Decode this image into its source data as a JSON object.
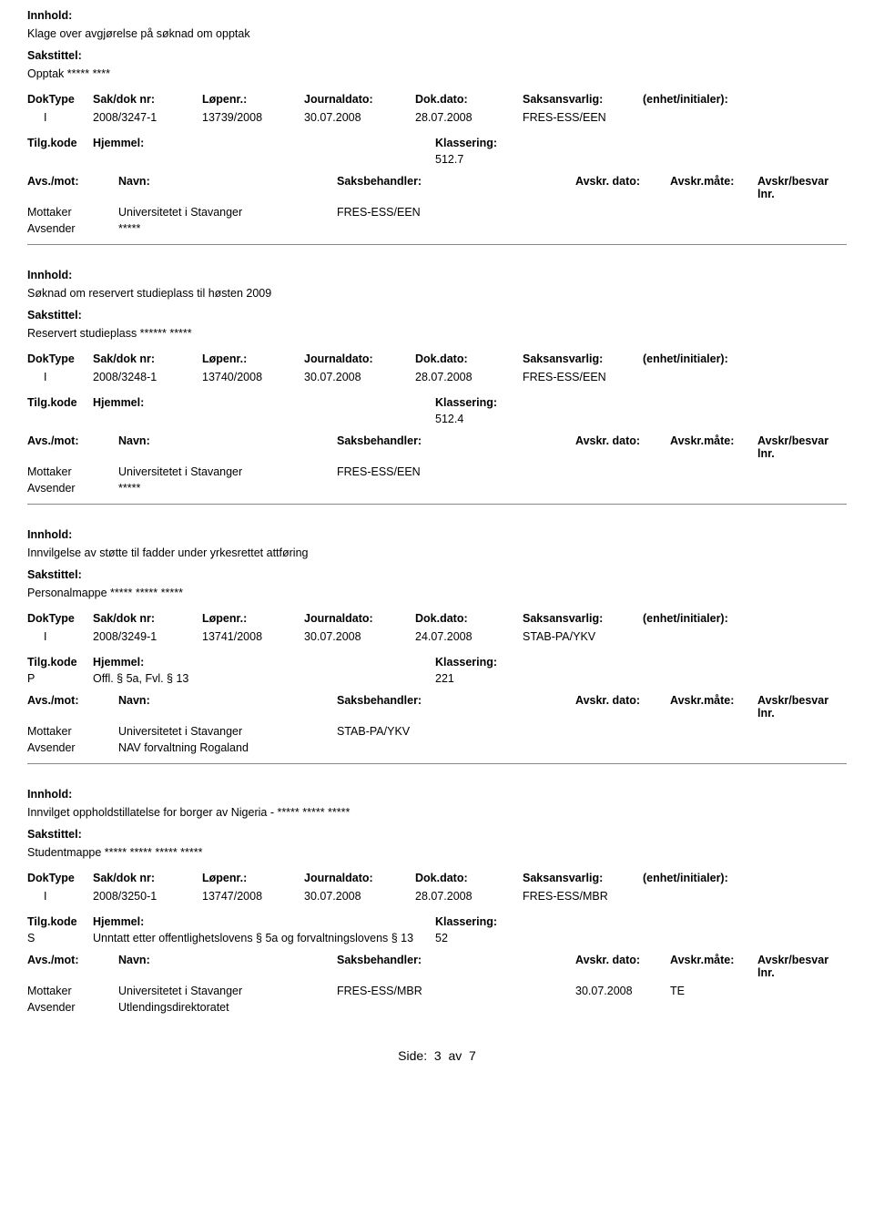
{
  "labels": {
    "innhold": "Innhold:",
    "sakstittel": "Sakstittel:",
    "doktype": "DokType",
    "saknr": "Sak/dok nr:",
    "lopenr": "Løpenr.:",
    "journaldato": "Journaldato:",
    "dokdato": "Dok.dato:",
    "saksansvarlig": "Saksansvarlig:",
    "enhet": "(enhet/initialer):",
    "tilgkode": "Tilg.kode",
    "hjemmel": "Hjemmel:",
    "klassering": "Klassering:",
    "avsmot": "Avs./mot:",
    "navn": "Navn:",
    "saksbehandler": "Saksbehandler:",
    "avskrdato": "Avskr. dato:",
    "avskrmate": "Avskr.måte:",
    "avskrlnr": "Avskr/besvar lnr.",
    "mottaker": "Mottaker",
    "avsender": "Avsender"
  },
  "entries": [
    {
      "innhold": "Klage over avgjørelse på søknad om opptak",
      "sakstittel": "Opptak ***** ****",
      "doktype": "I",
      "saknr": "2008/3247-1",
      "lopenr": "13739/2008",
      "journaldato": "30.07.2008",
      "dokdato": "28.07.2008",
      "saksansvarlig": "FRES-ESS/EEN",
      "tilgkode": "",
      "hjemmel": "",
      "klassering": "512.7",
      "mottaker_navn": "Universitetet i Stavanger",
      "mottaker_saksbeh": "FRES-ESS/EEN",
      "mottaker_avskrdato": "",
      "mottaker_avskrmate": "",
      "avsender_navn": "*****"
    },
    {
      "innhold": "Søknad om reservert studieplass til høsten 2009",
      "sakstittel": "Reservert studieplass ****** *****",
      "doktype": "I",
      "saknr": "2008/3248-1",
      "lopenr": "13740/2008",
      "journaldato": "30.07.2008",
      "dokdato": "28.07.2008",
      "saksansvarlig": "FRES-ESS/EEN",
      "tilgkode": "",
      "hjemmel": "",
      "klassering": "512.4",
      "mottaker_navn": "Universitetet i Stavanger",
      "mottaker_saksbeh": "FRES-ESS/EEN",
      "mottaker_avskrdato": "",
      "mottaker_avskrmate": "",
      "avsender_navn": "*****"
    },
    {
      "innhold": "Innvilgelse av støtte til fadder under yrkesrettet attføring",
      "sakstittel": "Personalmappe ***** ***** *****",
      "doktype": "I",
      "saknr": "2008/3249-1",
      "lopenr": "13741/2008",
      "journaldato": "30.07.2008",
      "dokdato": "24.07.2008",
      "saksansvarlig": "STAB-PA/YKV",
      "tilgkode": "P",
      "hjemmel": "Offl. § 5a, Fvl. § 13",
      "klassering": "221",
      "mottaker_navn": "Universitetet i Stavanger",
      "mottaker_saksbeh": "STAB-PA/YKV",
      "mottaker_avskrdato": "",
      "mottaker_avskrmate": "",
      "avsender_navn": "NAV forvaltning Rogaland"
    },
    {
      "innhold": "Innvilget oppholdstillatelse for borger av Nigeria - ***** ***** *****",
      "sakstittel": "Studentmappe ***** ***** ***** *****",
      "doktype": "I",
      "saknr": "2008/3250-1",
      "lopenr": "13747/2008",
      "journaldato": "30.07.2008",
      "dokdato": "28.07.2008",
      "saksansvarlig": "FRES-ESS/MBR",
      "tilgkode": "S",
      "hjemmel": "Unntatt etter offentlighetslovens § 5a og forvaltningslovens § 13",
      "klassering": "52",
      "mottaker_navn": "Universitetet i Stavanger",
      "mottaker_saksbeh": "FRES-ESS/MBR",
      "mottaker_avskrdato": "30.07.2008",
      "mottaker_avskrmate": "TE",
      "avsender_navn": "Utlendingsdirektoratet"
    }
  ],
  "footer": {
    "prefix": "Side:",
    "current": "3",
    "of": "av",
    "total": "7"
  }
}
